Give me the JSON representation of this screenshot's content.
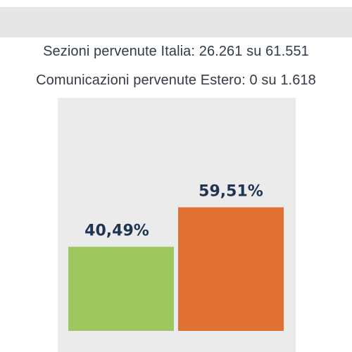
{
  "header": {
    "sections_line": "Sezioni pervenute Italia: 26.261 su 61.551",
    "communications_line": "Comunicazioni pervenute Estero: 0 su 1.618"
  },
  "colors": {
    "yes": "#9ec65f",
    "no": "#e07034",
    "label": "#1e3552",
    "panel": "#ebebeb"
  },
  "chart_data": {
    "type": "bar",
    "categories": [
      "",
      ""
    ],
    "values": [
      40.49,
      59.51
    ],
    "labels": [
      "40,49%",
      "59,51%"
    ],
    "colors": [
      "#9ec65f",
      "#e07034"
    ],
    "ylim": [
      0,
      100
    ],
    "title": "",
    "xlabel": "",
    "ylabel": "",
    "grid": false,
    "legend": "none"
  }
}
